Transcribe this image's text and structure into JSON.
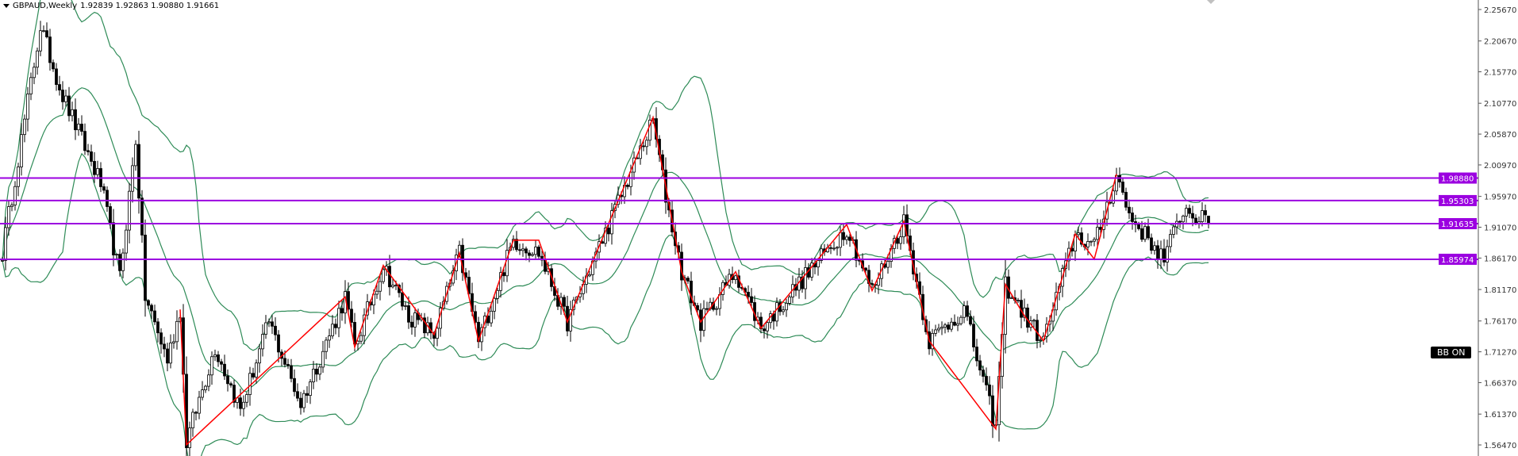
{
  "header": {
    "symbol_timeframe": "GBPAUD,Weekly",
    "ohlc": "1.92839 1.92863 1.90880 1.91661"
  },
  "indicator_badge": "BB ON",
  "colors": {
    "candles": "#000000",
    "bollinger_bands": "#2e8b57",
    "zigzag": "#ff0000",
    "levels": "#9b00e0",
    "axis": "#555555"
  },
  "chart_data": {
    "type": "candlestick",
    "symbol": "GBPAUD",
    "timeframe": "Weekly",
    "ylim": [
      1.5471,
      2.2718
    ],
    "y_ticks": [
      "2.25670",
      "2.20670",
      "2.15770",
      "2.10770",
      "2.05870",
      "2.00970",
      "1.95970",
      "1.91070",
      "1.86170",
      "1.81170",
      "1.76170",
      "1.71270",
      "1.66370",
      "1.61370",
      "1.56470"
    ],
    "last_bar": {
      "open": 1.92839,
      "high": 1.92863,
      "low": 1.9088,
      "close": 1.91661
    },
    "price_path_pivots": [
      [
        0,
        1.87
      ],
      [
        12,
        2.23
      ],
      [
        19,
        2.12
      ],
      [
        31,
        1.98
      ],
      [
        37,
        1.83
      ],
      [
        42,
        2.05
      ],
      [
        45,
        1.8
      ],
      [
        52,
        1.7
      ],
      [
        56,
        1.78
      ],
      [
        58,
        1.57
      ],
      [
        67,
        1.72
      ],
      [
        75,
        1.62
      ],
      [
        84,
        1.76
      ],
      [
        94,
        1.63
      ],
      [
        108,
        1.8
      ],
      [
        111,
        1.72
      ],
      [
        120,
        1.85
      ],
      [
        128,
        1.77
      ],
      [
        136,
        1.74
      ],
      [
        144,
        1.87
      ],
      [
        150,
        1.73
      ],
      [
        161,
        1.89
      ],
      [
        169,
        1.87
      ],
      [
        178,
        1.76
      ],
      [
        194,
        1.95
      ],
      [
        205,
        2.08
      ],
      [
        209,
        1.96
      ],
      [
        214,
        1.84
      ],
      [
        220,
        1.76
      ],
      [
        231,
        1.84
      ],
      [
        239,
        1.75
      ],
      [
        266,
        1.91
      ],
      [
        274,
        1.81
      ],
      [
        284,
        1.92
      ],
      [
        292,
        1.73
      ],
      [
        303,
        1.78
      ],
      [
        313,
        1.59
      ],
      [
        316,
        1.82
      ],
      [
        322,
        1.77
      ],
      [
        328,
        1.73
      ],
      [
        338,
        1.9
      ],
      [
        344,
        1.88
      ],
      [
        351,
        1.995
      ],
      [
        355,
        1.93
      ],
      [
        366,
        1.86
      ],
      [
        372,
        1.94
      ],
      [
        380,
        1.9166
      ]
    ],
    "zigzag": [
      [
        56,
        1.78
      ],
      [
        58,
        1.565
      ],
      [
        108,
        1.8
      ],
      [
        111,
        1.72
      ],
      [
        120,
        1.85
      ],
      [
        136,
        1.74
      ],
      [
        144,
        1.87
      ],
      [
        150,
        1.73
      ],
      [
        161,
        1.89
      ],
      [
        169,
        1.89
      ],
      [
        178,
        1.76
      ],
      [
        205,
        2.085
      ],
      [
        214,
        1.84
      ],
      [
        220,
        1.76
      ],
      [
        231,
        1.84
      ],
      [
        239,
        1.75
      ],
      [
        266,
        1.915
      ],
      [
        274,
        1.81
      ],
      [
        284,
        1.92
      ],
      [
        292,
        1.73
      ],
      [
        313,
        1.59
      ],
      [
        316,
        1.82
      ],
      [
        322,
        1.77
      ],
      [
        328,
        1.73
      ],
      [
        338,
        1.9
      ],
      [
        344,
        1.86
      ],
      [
        351,
        1.995
      ]
    ],
    "bollinger": {
      "period": 20,
      "deviation": 2
    },
    "horizontal_levels": [
      "1.98880",
      "1.95303",
      "1.91635",
      "1.85974"
    ]
  }
}
